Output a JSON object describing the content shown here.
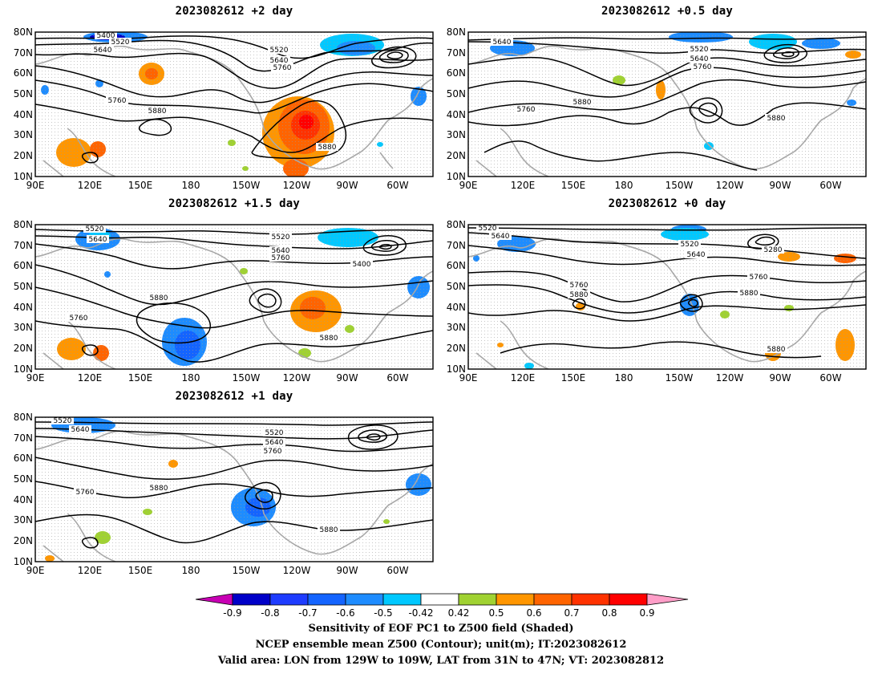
{
  "panels": [
    {
      "title": "2023082612 +2 day"
    },
    {
      "title": "2023082612 +0.5 day"
    },
    {
      "title": "2023082612 +1.5 day"
    },
    {
      "title": "2023082612 +0 day"
    },
    {
      "title": "2023082612 +1 day"
    }
  ],
  "lat_ticks": [
    "80N",
    "70N",
    "60N",
    "50N",
    "40N",
    "30N",
    "20N",
    "10N"
  ],
  "lon_ticks": [
    "90E",
    "120E",
    "150E",
    "180",
    "150W",
    "120W",
    "90W",
    "60W"
  ],
  "contour_labels": [
    "5400",
    "5520",
    "5640",
    "5760",
    "5880",
    "5280"
  ],
  "colorbar": {
    "ticks": [
      "-0.9",
      "-0.8",
      "-0.7",
      "-0.6",
      "-0.5",
      "-0.42",
      "0.42",
      "0.5",
      "0.6",
      "0.7",
      "0.8",
      "0.9"
    ],
    "colors": [
      "#0000c8",
      "#1e3cff",
      "#1464ff",
      "#1e8cff",
      "#00c8ff",
      "#ffffff",
      "#a0d232",
      "#ff9600",
      "#ff6400",
      "#ff3200",
      "#ff0000"
    ],
    "under_color": "#c800b4",
    "over_color": "#ff9ec8"
  },
  "caption": {
    "line1": "Sensitivity of EOF PC1 to Z500 field (Shaded)",
    "line2": "NCEP ensemble mean Z500 (Contour); unit(m); IT:2023082612",
    "line3": "Valid area: LON from 129W to 109W, LAT from 31N to 47N; VT: 2023082812"
  }
}
